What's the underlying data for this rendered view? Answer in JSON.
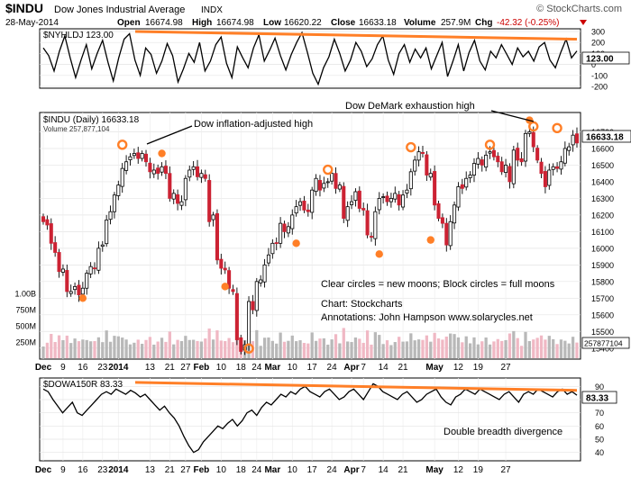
{
  "header": {
    "symbol": "$INDU",
    "name": "Dow Jones Industrial Average",
    "exchange": "INDX",
    "watermark": "© StockCharts.com",
    "date": "28-May-2014",
    "open_label": "Open",
    "open": "16674.98",
    "high_label": "High",
    "high": "16674.98",
    "low_label": "Low",
    "low": "16620.22",
    "close_label": "Close",
    "close": "16633.18",
    "volume_label": "Volume",
    "volume": "257.9M",
    "chg_label": "Chg",
    "chg": "-42.32 (-0.25%)",
    "chg_color": "#cc0000"
  },
  "chart_data": [
    {
      "panel": "nyhl",
      "type": "line",
      "title": "$NYHLDJ 123.00",
      "last_value_label": "123.00",
      "ylim": [
        -200,
        300
      ],
      "yticks": [
        "300",
        "200",
        "100",
        "0",
        "-100",
        "-200"
      ],
      "values": [
        150,
        80,
        -60,
        120,
        260,
        60,
        -120,
        40,
        180,
        -40,
        100,
        220,
        20,
        -150,
        60,
        230,
        280,
        40,
        -100,
        150,
        90,
        -80,
        30,
        190,
        80,
        -160,
        -40,
        100,
        20,
        200,
        -60,
        30,
        180,
        250,
        10,
        -120,
        160,
        60,
        -30,
        150,
        270,
        30,
        130,
        240,
        80,
        -50,
        90,
        200,
        290,
        110,
        -80,
        -180,
        -30,
        70,
        230,
        100,
        -60,
        40,
        200,
        120,
        -20,
        50,
        180,
        260,
        40,
        -90,
        100,
        180,
        20,
        140,
        60,
        150,
        -40,
        80,
        200,
        -110,
        30,
        180,
        -60,
        110,
        220,
        30,
        -50,
        120,
        60,
        180,
        90,
        0,
        150,
        70,
        120,
        30,
        160,
        200,
        40,
        -30,
        110,
        230,
        60,
        123
      ],
      "trendline": "declining from late Dec to end of May",
      "trendline_color": "#ff7f27"
    },
    {
      "panel": "price",
      "type": "candlestick",
      "title": "$INDU (Daily) 16633.18",
      "volume_text": "Volume 257,877,104",
      "last_value_label": "16633.18",
      "ylim": [
        15350,
        16800
      ],
      "yticks": [
        "16700",
        "16600",
        "16500",
        "16400",
        "16300",
        "16200",
        "16100",
        "16000",
        "15900",
        "15800",
        "15700",
        "15600",
        "15500",
        "15400"
      ],
      "volume_ticks": [
        "1.00B",
        "750M",
        "500M",
        "250M"
      ],
      "volume_last_label": "257877104",
      "up_color": "#ffffff",
      "down_color": "#cc2233",
      "volume_up_color": "#b8b8b8",
      "volume_down_color": "#f0b8c4",
      "closes": [
        16160,
        16140,
        16030,
        15975,
        15860,
        15875,
        15740,
        15740,
        15770,
        15720,
        15760,
        15850,
        15890,
        15880,
        16000,
        16020,
        16170,
        16220,
        16320,
        16380,
        16480,
        16520,
        16550,
        16570,
        16540,
        16570,
        16520,
        16460,
        16470,
        16450,
        16490,
        16450,
        16300,
        16330,
        16270,
        16280,
        16420,
        16470,
        16490,
        16430,
        16450,
        16420,
        16160,
        16200,
        15930,
        15880,
        15870,
        15760,
        15740,
        15450,
        15380,
        15420,
        15680,
        15630,
        15800,
        15810,
        15900,
        15960,
        16030,
        16030,
        16150,
        16100,
        16130,
        16200,
        16250,
        16280,
        16230,
        16220,
        16350,
        16420,
        16350,
        16390,
        16400,
        16450,
        16360,
        16380,
        16180,
        16250,
        16280,
        16340,
        16240,
        16230,
        16080,
        16070,
        16220,
        16300,
        16310,
        16280,
        16300,
        16330,
        16260,
        16320,
        16350,
        16460,
        16530,
        16580,
        16570,
        16440,
        16450,
        16260,
        16180,
        16150,
        16020,
        16160,
        16260,
        16370,
        16360,
        16420,
        16440,
        16510,
        16540,
        16500,
        16560,
        16580,
        16550,
        16520,
        16460,
        16500,
        16400,
        16590,
        16530,
        16520,
        16690,
        16700,
        16610,
        16530,
        16450,
        16370,
        16470,
        16490,
        16480,
        16520,
        16600,
        16610,
        16680,
        16633
      ],
      "x_ticks": [
        {
          "label": "Dec",
          "i": 0
        },
        {
          "label": "9",
          "i": 5
        },
        {
          "label": "16",
          "i": 10
        },
        {
          "label": "23",
          "i": 15
        },
        {
          "label": "2014",
          "i": 19
        },
        {
          "label": "13",
          "i": 27
        },
        {
          "label": "21",
          "i": 32
        },
        {
          "label": "27",
          "i": 36
        },
        {
          "label": "Feb",
          "i": 40
        },
        {
          "label": "10",
          "i": 45
        },
        {
          "label": "18",
          "i": 50
        },
        {
          "label": "24",
          "i": 54
        },
        {
          "label": "Mar",
          "i": 58
        },
        {
          "label": "10",
          "i": 63
        },
        {
          "label": "17",
          "i": 68
        },
        {
          "label": "24",
          "i": 73
        },
        {
          "label": "Apr",
          "i": 78
        },
        {
          "label": "7",
          "i": 81
        },
        {
          "label": "14",
          "i": 86
        },
        {
          "label": "21",
          "i": 91
        },
        {
          "label": "May",
          "i": 99
        },
        {
          "label": "12",
          "i": 105
        },
        {
          "label": "19",
          "i": 110
        },
        {
          "label": "27",
          "i": 117
        }
      ],
      "annotations": [
        "Dow inflation-adjusted high",
        "Dow DeMark exhaustion high",
        "Clear circles = new moons; Block circles = full moons",
        "Chart: Stockcharts",
        "Annotations: John Hampson  www.solarycles.net"
      ],
      "moon_color": "#ff7f27"
    },
    {
      "panel": "breadth",
      "type": "line",
      "title": "$DOWA150R 83.33",
      "last_value_label": "83.33",
      "ylim": [
        35,
        95
      ],
      "yticks": [
        "90",
        "80",
        "70",
        "60",
        "50",
        "40"
      ],
      "values": [
        88,
        86,
        80,
        75,
        70,
        74,
        78,
        70,
        68,
        72,
        76,
        80,
        84,
        86,
        84,
        88,
        86,
        84,
        87,
        85,
        82,
        84,
        80,
        76,
        72,
        75,
        70,
        66,
        60,
        52,
        45,
        40,
        42,
        48,
        52,
        56,
        60,
        58,
        62,
        65,
        60,
        64,
        70,
        72,
        68,
        74,
        78,
        76,
        80,
        84,
        82,
        86,
        84,
        88,
        90,
        86,
        84,
        82,
        86,
        88,
        84,
        80,
        82,
        86,
        88,
        84,
        80,
        86,
        92,
        90,
        86,
        84,
        82,
        80,
        84,
        86,
        82,
        78,
        80,
        84,
        86,
        88,
        82,
        78,
        76,
        82,
        84,
        88,
        86,
        84,
        88,
        86,
        84,
        82,
        80,
        84,
        86,
        82,
        78,
        84,
        86,
        84,
        88,
        86,
        84,
        82,
        86,
        88,
        84,
        86,
        83.33
      ],
      "annotation": "Double breadth divergence",
      "trendline_color": "#ff7f27"
    }
  ]
}
